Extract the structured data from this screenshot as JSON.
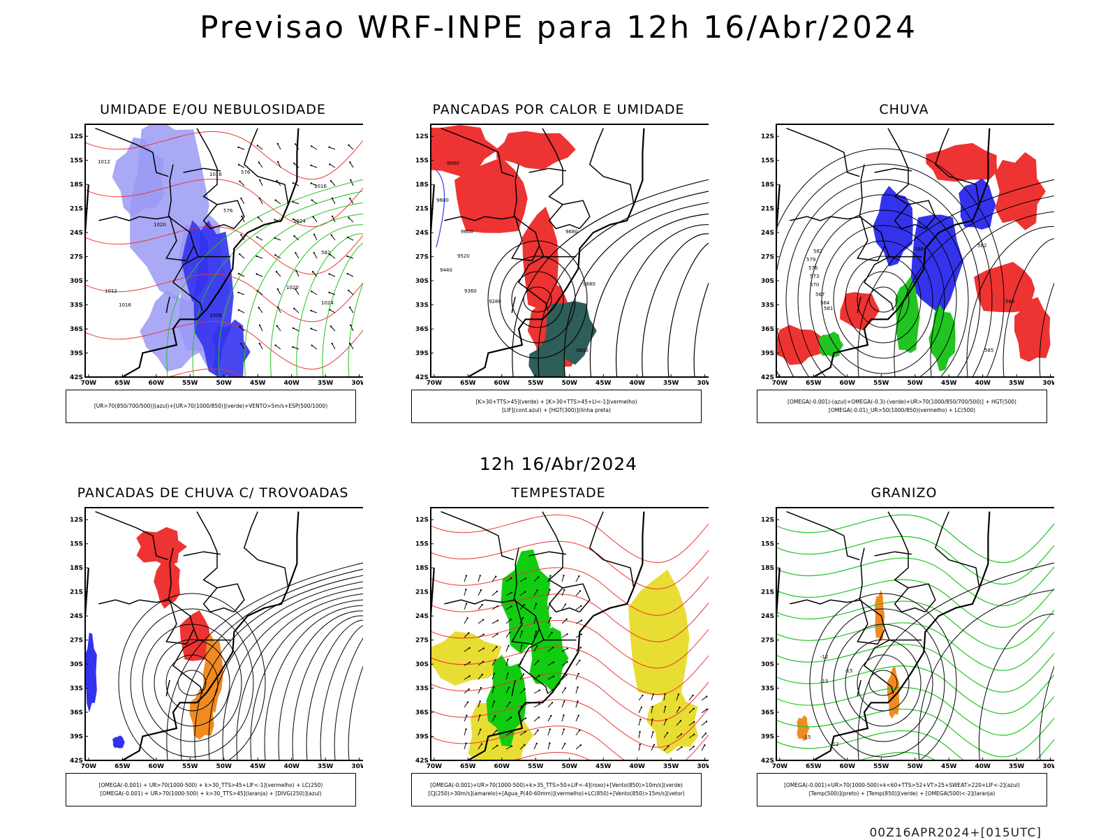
{
  "main_title": "Previsao WRF-INPE  para 12h 16/Abr/2024",
  "mid_title": "12h 16/Abr/2024",
  "footer": "00Z16APR2024+[015UTC]",
  "axes": {
    "lat_labels": [
      "12S",
      "15S",
      "18S",
      "21S",
      "24S",
      "27S",
      "30S",
      "33S",
      "36S",
      "39S",
      "42S"
    ],
    "lon_labels": [
      "70W",
      "65W",
      "60W",
      "55W",
      "50W",
      "45W",
      "40W",
      "35W",
      "30W"
    ]
  },
  "colors": {
    "blue": "#3333ee",
    "lightblue": "#9a9af5",
    "green": "#22c422",
    "red": "#ee3333",
    "darkgreen": "#2e5e58",
    "yellow": "#e8dd33",
    "orange": "#f08a22",
    "brightgreen": "#11cc11"
  },
  "panels": [
    {
      "title": "UMIDADE E/OU NEBULOSIDADE",
      "legend": [
        "[UR>70(850/700/500)](azul)+[UR>70(1000/850)](verde)+VENTO>5m/s+ESP(500/1000)"
      ],
      "labels": [
        "1012",
        "1016",
        "1016",
        "1020",
        "1024",
        "1012",
        "1016",
        "1024",
        "1020",
        "1008",
        "576",
        "576",
        "582"
      ]
    },
    {
      "title": "PANCADAS POR CALOR E UMIDADE",
      "legend": [
        "[K>30+TTS>45](verde)  +  [K>30+TTS>45+LI<-1](vermelho)",
        "[LIF](cont.azul)  +  [HGT(300)](linha preta)"
      ],
      "labels": [
        "9680",
        "9600",
        "9600",
        "9520",
        "9440",
        "9360",
        "9280",
        "9680",
        "9680",
        "9600"
      ]
    },
    {
      "title": "CHUVA",
      "legend": [
        "[OMEGA(-0.001)-(azul)+OMEGA(-0.3)-(verde)+UR>70(1000/850/700/500)]  +  HGT(500)",
        "[OMEGA(-0.01)_UR>50(1000/850)(vermelho)  +  LC(500)"
      ],
      "labels": [
        "582",
        "579",
        "576",
        "573",
        "570",
        "567",
        "564",
        "561",
        "588",
        "582",
        "588",
        "585"
      ]
    },
    {
      "title": "PANCADAS DE CHUVA C/ TROVOADAS",
      "legend": [
        "[OMEGA(-0.001) + UR>70(1000-500)  +  k>30_TTS>45+LIF<-1](vermelho)  +  LC(250)",
        "[OMEGA(-0.001)  +  UR>70(1000-500)  +  k>30_TTS>45](laranja)  +  [DIVG(250)](azul)"
      ],
      "labels": []
    },
    {
      "title": "TEMPESTADE",
      "legend": [
        "[OMEGA(-0.001)+UR>70(1000-500)+k>35_TTS>50+LIF<-4](roxo)+[Vento(850)>10m/s](verde)",
        "[CJ(250)>30m/s](amarelo)+[Agua_P(40-60mm)](vermelho)+LC(850)+[Vento(850)>15m/s](vetor)"
      ],
      "labels": []
    },
    {
      "title": "GRANIZO",
      "legend": [
        "[OMEGA(-0.001)+UR>70(1000-500)+k<60+TTS>52+VT>25+SWEAT>220+LIF<-2](azul)",
        "[Temp(500)](preto)  +  [Temp(850)](verde)  +  [OMEGA(500)<-2](laranja)"
      ],
      "labels": [
        "-12",
        "-15",
        "-15",
        "-15",
        "-12"
      ]
    }
  ]
}
